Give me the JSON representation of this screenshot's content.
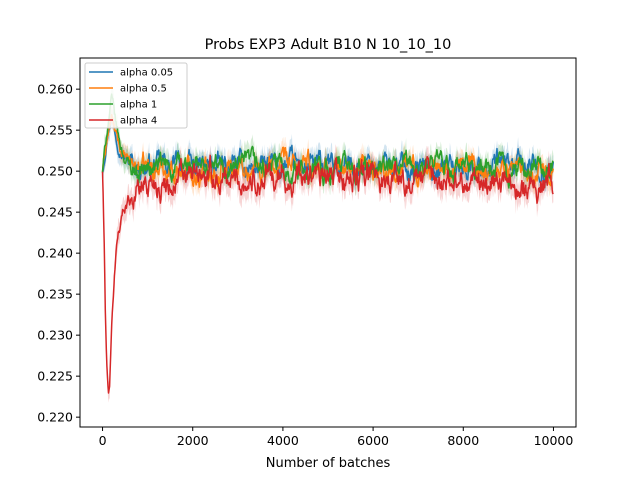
{
  "chart_data": {
    "type": "line",
    "title": "Probs EXP3 Adult B10 N 10_10_10",
    "xlabel": "Number of batches",
    "ylabel": "",
    "xlim": [
      -500,
      10500
    ],
    "ylim": [
      0.2188,
      0.2638
    ],
    "xticks": [
      0,
      2000,
      4000,
      6000,
      8000,
      10000
    ],
    "xtick_labels": [
      "0",
      "2000",
      "4000",
      "6000",
      "8000",
      "10000"
    ],
    "yticks": [
      0.22,
      0.225,
      0.23,
      0.235,
      0.24,
      0.245,
      0.25,
      0.255,
      0.26
    ],
    "ytick_labels": [
      "0.220",
      "0.225",
      "0.230",
      "0.235",
      "0.240",
      "0.245",
      "0.250",
      "0.255",
      "0.260"
    ],
    "grid": false,
    "legend_position": "upper-left",
    "band": "shaded uncertainty around each series",
    "series": [
      {
        "name": "alpha 0.05",
        "color": "#1f77b4",
        "x": [
          0,
          100,
          200,
          300,
          400,
          500,
          600,
          800,
          1000,
          1500,
          2000,
          3000,
          4000,
          5000,
          6000,
          7000,
          8000,
          9000,
          10000
        ],
        "values": [
          0.25,
          0.2545,
          0.257,
          0.2545,
          0.2528,
          0.2518,
          0.251,
          0.2508,
          0.2505,
          0.2507,
          0.2505,
          0.2505,
          0.2506,
          0.2505,
          0.2508,
          0.2506,
          0.2507,
          0.2505,
          0.2507
        ],
        "noise": 0.0009
      },
      {
        "name": "alpha 0.5",
        "color": "#ff7f0e",
        "x": [
          0,
          100,
          200,
          300,
          400,
          500,
          600,
          800,
          1000,
          1500,
          2000,
          3000,
          4000,
          5000,
          6000,
          7000,
          8000,
          9000,
          10000
        ],
        "values": [
          0.25,
          0.254,
          0.2565,
          0.2542,
          0.2525,
          0.2515,
          0.2508,
          0.2505,
          0.2503,
          0.2504,
          0.2502,
          0.2503,
          0.2504,
          0.2502,
          0.2503,
          0.2505,
          0.2504,
          0.2503,
          0.2505
        ],
        "noise": 0.0009
      },
      {
        "name": "alpha 1",
        "color": "#2ca02c",
        "x": [
          0,
          100,
          200,
          300,
          400,
          500,
          600,
          800,
          1000,
          1500,
          2000,
          3000,
          4000,
          5000,
          6000,
          7000,
          8000,
          9000,
          10000
        ],
        "values": [
          0.25,
          0.255,
          0.2588,
          0.2555,
          0.253,
          0.2515,
          0.2508,
          0.2503,
          0.2503,
          0.2504,
          0.2503,
          0.2503,
          0.2504,
          0.2503,
          0.2502,
          0.2503,
          0.2503,
          0.2503,
          0.2504
        ],
        "noise": 0.0009
      },
      {
        "name": "alpha 4",
        "color": "#d62728",
        "x": [
          0,
          30,
          60,
          100,
          130,
          160,
          200,
          250,
          300,
          350,
          400,
          500,
          600,
          800,
          1000,
          1500,
          2000,
          3000,
          4000,
          5000,
          6000,
          7000,
          8000,
          9000,
          10000
        ],
        "values": [
          0.25,
          0.243,
          0.233,
          0.225,
          0.223,
          0.2245,
          0.23,
          0.236,
          0.24,
          0.2425,
          0.244,
          0.246,
          0.247,
          0.248,
          0.2487,
          0.2488,
          0.249,
          0.249,
          0.249,
          0.249,
          0.2492,
          0.249,
          0.249,
          0.2488,
          0.2485
        ],
        "noise": 0.0011
      }
    ]
  }
}
